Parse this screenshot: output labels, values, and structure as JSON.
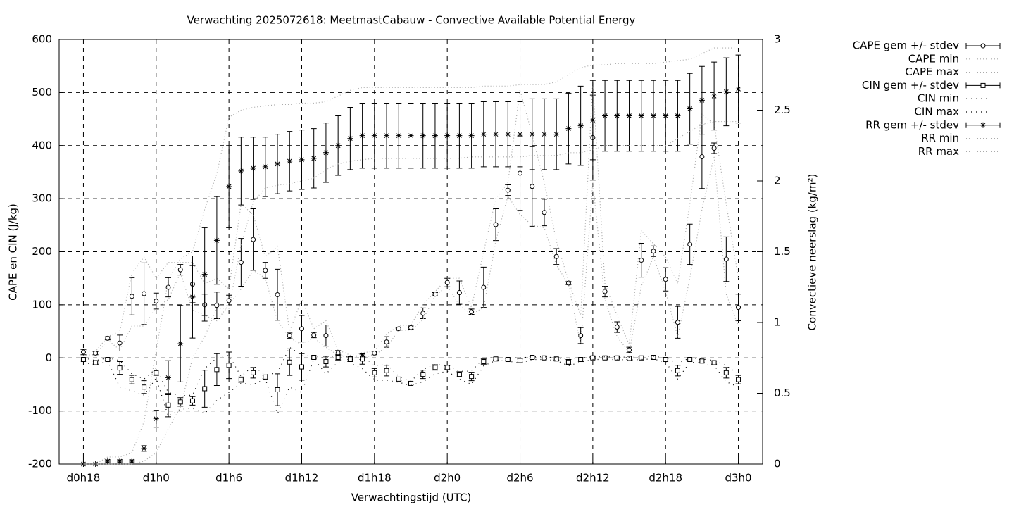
{
  "chart_data": {
    "type": "line",
    "title": "Verwachting 2025072618: MeetmastCabauw - Convective Available Potential Energy",
    "xlabel": "Verwachtingstijd (UTC)",
    "ylabel": "CAPE en CIN (J/kg)",
    "y2label": "Convectieve neerslag (kg/m²)",
    "x": [
      0,
      1,
      2,
      3,
      4,
      5,
      6,
      7,
      8,
      9,
      10,
      11,
      12,
      13,
      14,
      15,
      16,
      17,
      18,
      19,
      20,
      21,
      22,
      23,
      24,
      25,
      26,
      27,
      28,
      29,
      30,
      31,
      32,
      33,
      34,
      35,
      36,
      37,
      38,
      39,
      40,
      41,
      42,
      43,
      44,
      45,
      46,
      47,
      48,
      49,
      50,
      51,
      52,
      53,
      54
    ],
    "xlim": [
      -2,
      56
    ],
    "xticks": [
      {
        "value": 0,
        "label": "d0h18"
      },
      {
        "value": 6,
        "label": "d1h0"
      },
      {
        "value": 12,
        "label": "d1h6"
      },
      {
        "value": 18,
        "label": "d1h12"
      },
      {
        "value": 24,
        "label": "d1h18"
      },
      {
        "value": 30,
        "label": "d2h0"
      },
      {
        "value": 36,
        "label": "d2h6"
      },
      {
        "value": 42,
        "label": "d2h12"
      },
      {
        "value": 48,
        "label": "d2h18"
      },
      {
        "value": 54,
        "label": "d3h0"
      }
    ],
    "ylim": [
      -200,
      600
    ],
    "yticks": [
      -200,
      -100,
      0,
      100,
      200,
      300,
      400,
      500,
      600
    ],
    "y2lim": [
      0,
      3
    ],
    "y2ticks": [
      0,
      0.5,
      1,
      1.5,
      2,
      2.5,
      3
    ],
    "grid": true,
    "legend": "outside right",
    "series": [
      {
        "name": "CAPE gem +/- stdev",
        "color": "#000000",
        "marker": "circle",
        "values": [
          11,
          9,
          37,
          28,
          116,
          121,
          107,
          133,
          166,
          139,
          100,
          99,
          108,
          180,
          223,
          165,
          119,
          42,
          55,
          43,
          42,
          9,
          0,
          2,
          9,
          30,
          55,
          57,
          84,
          120,
          142,
          123,
          87,
          133,
          251,
          316,
          348,
          323,
          274,
          191,
          141,
          42,
          415,
          125,
          58,
          15,
          184,
          201,
          148,
          67,
          214,
          379,
          395,
          186,
          95
        ],
        "errors": [
          5,
          3,
          3,
          15,
          35,
          58,
          15,
          18,
          10,
          35,
          20,
          25,
          10,
          45,
          58,
          15,
          48,
          5,
          25,
          5,
          20,
          5,
          3,
          5,
          3,
          10,
          3,
          3,
          10,
          3,
          8,
          22,
          5,
          38,
          30,
          10,
          70,
          75,
          25,
          15,
          3,
          15,
          80,
          10,
          10,
          5,
          32,
          10,
          22,
          30,
          38,
          60,
          10,
          42,
          25
        ]
      },
      {
        "name": "CAPE min",
        "color": "#aaaaaa",
        "dash": "dotted",
        "values": [
          5,
          6,
          34,
          15,
          60,
          60,
          95,
          110,
          160,
          90,
          80,
          70,
          100,
          130,
          165,
          150,
          70,
          38,
          25,
          38,
          20,
          5,
          0,
          0,
          6,
          20,
          52,
          52,
          72,
          117,
          135,
          100,
          82,
          95,
          220,
          305,
          270,
          250,
          245,
          175,
          138,
          25,
          330,
          110,
          40,
          10,
          135,
          190,
          125,
          40,
          150,
          280,
          380,
          120,
          60
        ]
      },
      {
        "name": "CAPE max",
        "color": "#aaaaaa",
        "dash": "dotted",
        "values": [
          14,
          12,
          40,
          50,
          160,
          190,
          150,
          180,
          180,
          180,
          140,
          150,
          130,
          290,
          270,
          190,
          210,
          50,
          110,
          55,
          70,
          15,
          5,
          10,
          12,
          45,
          60,
          62,
          100,
          125,
          150,
          150,
          95,
          200,
          300,
          330,
          505,
          420,
          330,
          220,
          145,
          80,
          520,
          140,
          80,
          25,
          240,
          215,
          190,
          140,
          290,
          460,
          440,
          290,
          150
        ]
      },
      {
        "name": "CIN gem +/- stdev",
        "color": "#000000",
        "marker": "square",
        "values": [
          -3,
          -9,
          -3,
          -19,
          -41,
          -55,
          -28,
          -89,
          -83,
          -81,
          -58,
          -22,
          -14,
          -41,
          -28,
          -36,
          -60,
          -8,
          -17,
          1,
          -7,
          1,
          -2,
          -2,
          -28,
          -24,
          -40,
          -48,
          -31,
          -18,
          -18,
          -31,
          -35,
          -7,
          -2,
          -3,
          -5,
          1,
          0,
          -2,
          -8,
          -3,
          0,
          0,
          0,
          -1,
          0,
          1,
          -3,
          -24,
          -3,
          -6,
          -9,
          -28,
          -41
        ],
        "errors": [
          3,
          3,
          2,
          12,
          8,
          12,
          5,
          22,
          8,
          8,
          35,
          30,
          25,
          5,
          10,
          3,
          30,
          25,
          25,
          3,
          10,
          5,
          5,
          10,
          8,
          10,
          3,
          3,
          8,
          5,
          3,
          5,
          8,
          5,
          2,
          2,
          3,
          2,
          2,
          2,
          5,
          3,
          2,
          2,
          2,
          2,
          2,
          2,
          3,
          10,
          3,
          3,
          3,
          10,
          8
        ]
      },
      {
        "name": "CIN min",
        "color": "#000000",
        "dash": "sparse",
        "values": [
          -8,
          -14,
          -6,
          -55,
          -62,
          -70,
          -38,
          -110,
          -97,
          -95,
          -105,
          -80,
          -65,
          -48,
          -50,
          -40,
          -105,
          -55,
          -65,
          -2,
          -30,
          -8,
          -10,
          -20,
          -42,
          -42,
          -46,
          -52,
          -45,
          -30,
          -25,
          -40,
          -50,
          -15,
          -5,
          -6,
          -10,
          -3,
          -3,
          -5,
          -15,
          -8,
          -3,
          -3,
          -3,
          -4,
          -3,
          -2,
          -8,
          -40,
          -8,
          -10,
          -14,
          -45,
          -55
        ]
      },
      {
        "name": "CIN max",
        "color": "#000000",
        "dash": "sparse",
        "values": [
          0,
          -5,
          0,
          -5,
          -30,
          -40,
          -20,
          -65,
          -72,
          -70,
          -20,
          0,
          5,
          -35,
          -15,
          -32,
          -28,
          20,
          5,
          3,
          0,
          5,
          2,
          5,
          -15,
          -12,
          -35,
          -44,
          -22,
          -12,
          -14,
          -25,
          -25,
          0,
          0,
          0,
          0,
          2,
          2,
          0,
          -2,
          0,
          2,
          2,
          2,
          1,
          2,
          3,
          0,
          -10,
          0,
          -2,
          -5,
          -15,
          -30
        ]
      },
      {
        "name": "RR gem +/- stdev",
        "color": "#000000",
        "marker": "star",
        "axis": "y2",
        "values": [
          0,
          0,
          0.02,
          0.02,
          0.02,
          0.11,
          0.32,
          0.61,
          0.85,
          1.18,
          1.34,
          1.58,
          1.96,
          2.07,
          2.09,
          2.1,
          2.12,
          2.14,
          2.15,
          2.16,
          2.2,
          2.25,
          2.3,
          2.32,
          2.32,
          2.32,
          2.32,
          2.32,
          2.32,
          2.32,
          2.32,
          2.32,
          2.32,
          2.33,
          2.33,
          2.33,
          2.33,
          2.33,
          2.33,
          2.33,
          2.37,
          2.39,
          2.43,
          2.46,
          2.46,
          2.46,
          2.46,
          2.46,
          2.46,
          2.46,
          2.51,
          2.57,
          2.6,
          2.63,
          2.65
        ],
        "errors": [
          0,
          0,
          0.01,
          0.01,
          0.01,
          0.02,
          0.06,
          0.12,
          0.27,
          0.29,
          0.33,
          0.31,
          0.29,
          0.24,
          0.22,
          0.21,
          0.21,
          0.21,
          0.21,
          0.21,
          0.21,
          0.21,
          0.22,
          0.23,
          0.23,
          0.23,
          0.23,
          0.23,
          0.23,
          0.23,
          0.23,
          0.23,
          0.23,
          0.23,
          0.23,
          0.23,
          0.23,
          0.25,
          0.25,
          0.25,
          0.25,
          0.28,
          0.28,
          0.25,
          0.25,
          0.25,
          0.25,
          0.25,
          0.25,
          0.25,
          0.25,
          0.24,
          0.24,
          0.24,
          0.24
        ]
      },
      {
        "name": "RR min",
        "color": "#aaaaaa",
        "dash": "dotted",
        "axis": "y2",
        "values": [
          0,
          0,
          0,
          0,
          0,
          0.02,
          0.08,
          0.25,
          0.4,
          0.75,
          0.9,
          1.1,
          1.1,
          1.55,
          1.85,
          1.95,
          1.97,
          1.98,
          2,
          2.02,
          2.08,
          2.12,
          2.14,
          2.15,
          2.16,
          2.16,
          2.16,
          2.16,
          2.16,
          2.16,
          2.16,
          2.16,
          2.17,
          2.17,
          2.17,
          2.17,
          2.17,
          2.18,
          2.18,
          2.18,
          2.2,
          2.2,
          2.22,
          2.25,
          2.25,
          2.25,
          2.25,
          2.25,
          2.25,
          2.3,
          2.35,
          2.4,
          2.42,
          2.42,
          2.42
        ]
      },
      {
        "name": "RR max",
        "color": "#aaaaaa",
        "dash": "dotted",
        "axis": "y2",
        "values": [
          0,
          0,
          0.05,
          0.05,
          0.08,
          0.3,
          0.8,
          1.3,
          1.45,
          1.5,
          1.8,
          2.05,
          2.45,
          2.5,
          2.52,
          2.53,
          2.54,
          2.54,
          2.55,
          2.55,
          2.56,
          2.6,
          2.64,
          2.66,
          2.66,
          2.66,
          2.66,
          2.66,
          2.66,
          2.66,
          2.66,
          2.66,
          2.66,
          2.67,
          2.67,
          2.67,
          2.68,
          2.68,
          2.68,
          2.7,
          2.75,
          2.8,
          2.82,
          2.82,
          2.83,
          2.83,
          2.83,
          2.83,
          2.84,
          2.85,
          2.86,
          2.9,
          2.94,
          2.94,
          2.94
        ]
      }
    ]
  }
}
